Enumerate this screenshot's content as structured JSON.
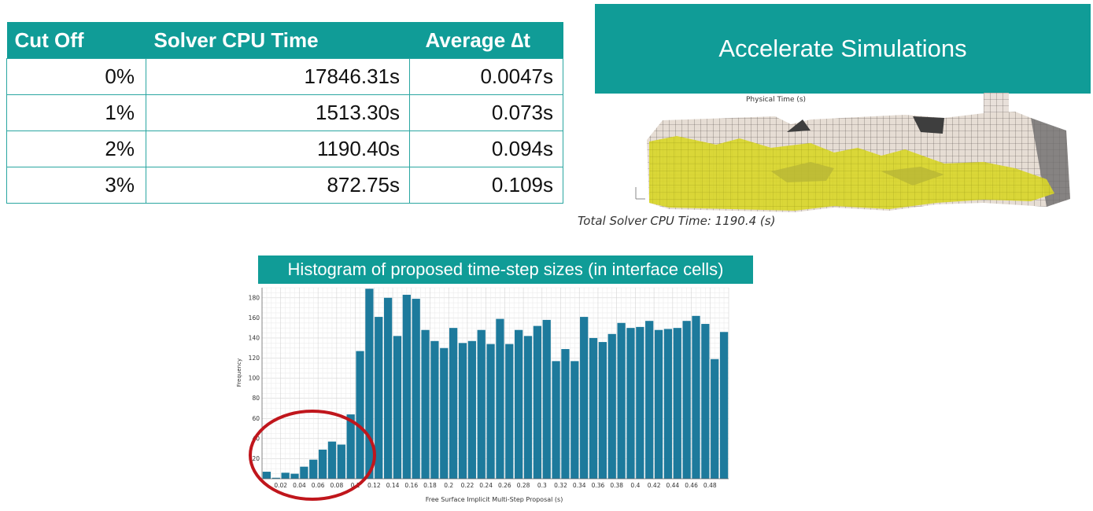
{
  "table": {
    "headers": [
      "Cut Off",
      "Solver CPU Time",
      "Average ∆t"
    ],
    "rows": [
      [
        "0%",
        "17846.31s",
        "0.0047s"
      ],
      [
        "1%",
        "1513.30s",
        "0.073s"
      ],
      [
        "2%",
        "1190.40s",
        "0.094s"
      ],
      [
        "3%",
        "872.75s",
        "0.109s"
      ]
    ]
  },
  "banner_accelerate": "Accelerate Simulations",
  "banner_histogram": "Histogram of proposed time-step sizes (in interface cells)",
  "simulation": {
    "physical_time_label": "Physical Time (s)",
    "cpu_time_caption": "Total Solver CPU Time: 1190.4 (s)"
  },
  "colors": {
    "accent": "#109c97",
    "bar": "#1d7a9c",
    "highlight_circle": "#c0161c",
    "fluid": "#d9d62a"
  },
  "chart_data": {
    "type": "bar",
    "title": "Histogram of proposed time-step sizes (in interface cells)",
    "xlabel": "Free Surface Implicit Multi-Step Proposal  (s)",
    "ylabel": "Frequency",
    "bin_width": 0.01,
    "xlim": [
      0,
      0.5
    ],
    "ylim": [
      0,
      190
    ],
    "yticks": [
      20,
      40,
      60,
      80,
      100,
      120,
      140,
      160,
      180
    ],
    "ytick_labels": [
      "20",
      "40",
      "60",
      "80",
      "100",
      "120",
      "140",
      "160",
      "180"
    ],
    "xticks": [
      0.02,
      0.04,
      0.06,
      0.08,
      0.1,
      0.12,
      0.14,
      0.16,
      0.18,
      0.2,
      0.22,
      0.24,
      0.26,
      0.28,
      0.3,
      0.32,
      0.34,
      0.36,
      0.38,
      0.4,
      0.42,
      0.44,
      0.46,
      0.48
    ],
    "xtick_labels": [
      "0.02",
      "0.04",
      "0.06",
      "0.08",
      "0.1",
      "0.12",
      "0.14",
      "0.16",
      "0.18",
      "0.2",
      "0.22",
      "0.24",
      "0.26",
      "0.28",
      "0.3",
      "0.32",
      "0.34",
      "0.36",
      "0.38",
      "0.4",
      "0.42",
      "0.44",
      "0.46",
      "0.48"
    ],
    "values": [
      7,
      1,
      6,
      5,
      12,
      19,
      29,
      37,
      34,
      64,
      127,
      189,
      161,
      180,
      142,
      183,
      179,
      148,
      137,
      130,
      150,
      135,
      137,
      148,
      134,
      159,
      134,
      148,
      142,
      152,
      158,
      117,
      129,
      117,
      161,
      140,
      136,
      144,
      155,
      150,
      151,
      157,
      148,
      149,
      150,
      157,
      162,
      154,
      119,
      146
    ],
    "grid": true,
    "annotation": "red ellipse around the smallest time-step bins (0 – 0.1 s)"
  }
}
